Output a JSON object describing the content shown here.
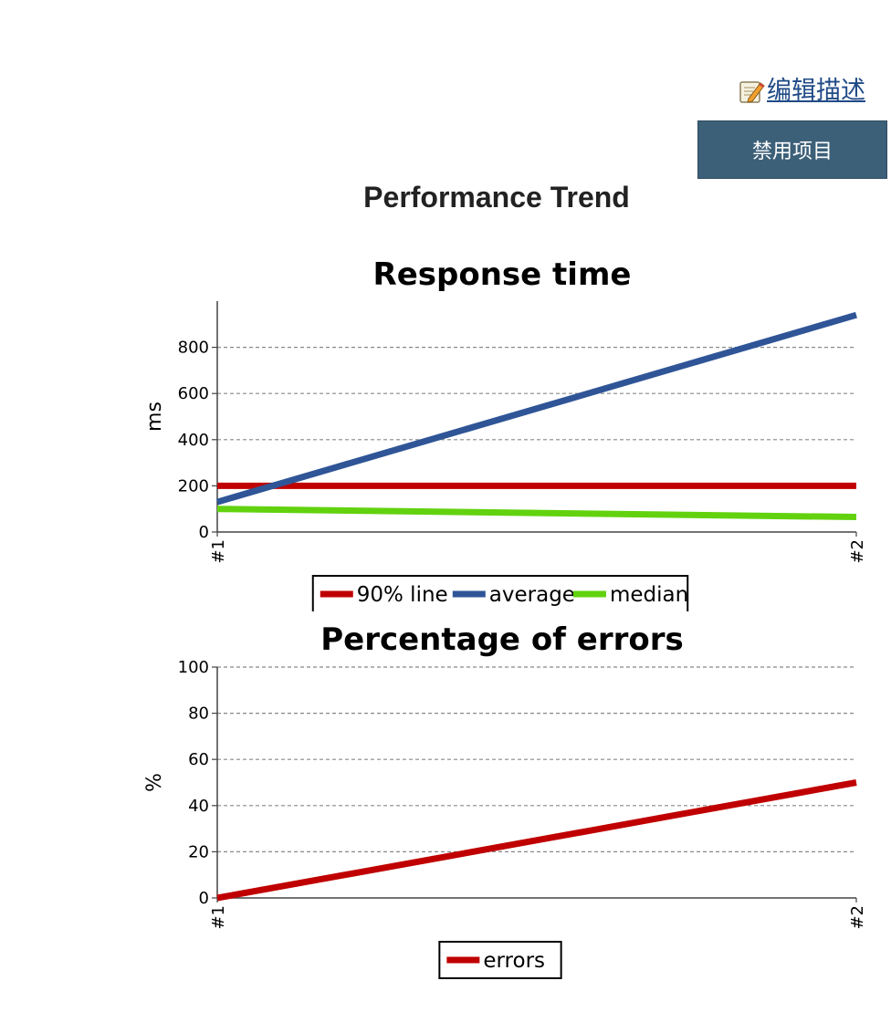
{
  "header": {
    "edit_link": "编辑描述",
    "edit_icon": "notepad-pencil-icon",
    "disable_button": "禁用项目"
  },
  "section_title": "Performance Trend",
  "colors": {
    "red": "#c00000",
    "blue": "#2f5597",
    "green": "#62d20f",
    "link": "#204a87",
    "button": "#3d6079"
  },
  "chart_data": [
    {
      "type": "line",
      "title": "Response time",
      "xlabel": "",
      "ylabel": "ms",
      "x": [
        "#1",
        "#2"
      ],
      "ylim": [
        0,
        1000
      ],
      "yticks": [
        0,
        200,
        400,
        600,
        800
      ],
      "grid": true,
      "legend_position": "bottom",
      "series": [
        {
          "name": "90% line",
          "values": [
            200,
            200
          ],
          "color": "#c00000"
        },
        {
          "name": "average",
          "values": [
            130,
            940
          ],
          "color": "#2f5597"
        },
        {
          "name": "median",
          "values": [
            100,
            65
          ],
          "color": "#62d20f"
        }
      ]
    },
    {
      "type": "line",
      "title": "Percentage of errors",
      "xlabel": "",
      "ylabel": "%",
      "x": [
        "#1",
        "#2"
      ],
      "ylim": [
        0,
        100
      ],
      "yticks": [
        0,
        20,
        40,
        60,
        80,
        100
      ],
      "grid": true,
      "legend_position": "bottom",
      "series": [
        {
          "name": "errors",
          "values": [
            0,
            50
          ],
          "color": "#c00000"
        }
      ]
    }
  ]
}
